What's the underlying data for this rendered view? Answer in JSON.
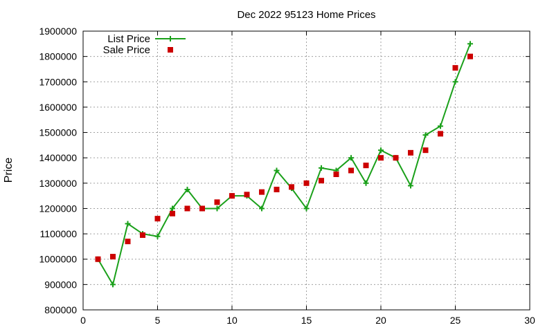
{
  "chart_data": {
    "type": "line",
    "title": "Dec 2022 95123 Home Prices",
    "xlabel": "",
    "ylabel": "Price",
    "xlim": [
      0,
      30
    ],
    "ylim": [
      800000,
      1900000
    ],
    "xticks": [
      0,
      5,
      10,
      15,
      20,
      25,
      30
    ],
    "yticks": [
      800000,
      900000,
      1000000,
      1100000,
      1200000,
      1300000,
      1400000,
      1500000,
      1600000,
      1700000,
      1800000,
      1900000
    ],
    "grid": true,
    "legend_position": "top-left",
    "series": [
      {
        "name": "List Price",
        "style": "line-plus",
        "color": "#1aa01a",
        "x": [
          1,
          2,
          3,
          4,
          5,
          6,
          7,
          8,
          9,
          10,
          11,
          12,
          13,
          14,
          15,
          16,
          17,
          18,
          19,
          20,
          21,
          22,
          23,
          24,
          25,
          26
        ],
        "y": [
          1000000,
          900000,
          1140000,
          1100000,
          1090000,
          1200000,
          1275000,
          1200000,
          1200000,
          1250000,
          1250000,
          1200000,
          1350000,
          1280000,
          1200000,
          1360000,
          1350000,
          1400000,
          1300000,
          1430000,
          1400000,
          1290000,
          1490000,
          1525000,
          1700000,
          1850000
        ]
      },
      {
        "name": "Sale Price",
        "style": "square-points",
        "color": "#cc0000",
        "x": [
          1,
          2,
          3,
          4,
          5,
          6,
          7,
          8,
          9,
          10,
          11,
          12,
          13,
          14,
          15,
          16,
          17,
          18,
          19,
          20,
          21,
          22,
          23,
          24,
          25,
          26
        ],
        "y": [
          1000000,
          1010000,
          1070000,
          1095000,
          1160000,
          1180000,
          1200000,
          1200000,
          1225000,
          1250000,
          1255000,
          1265000,
          1275000,
          1285000,
          1300000,
          1310000,
          1335000,
          1350000,
          1370000,
          1400000,
          1400000,
          1420000,
          1430000,
          1495000,
          1755000,
          1800000
        ]
      }
    ]
  }
}
